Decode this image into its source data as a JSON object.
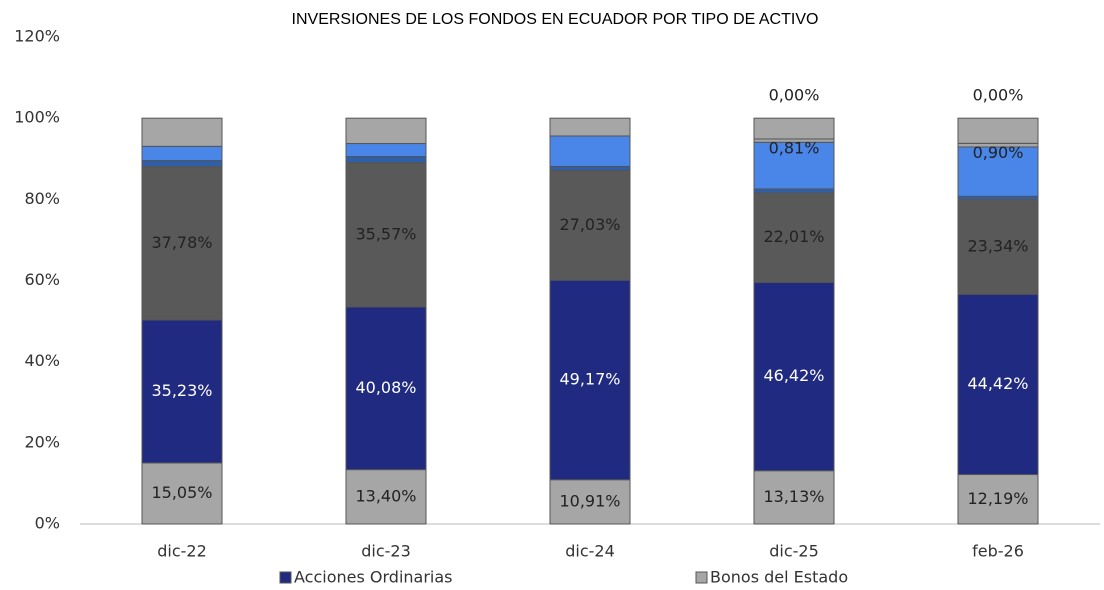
{
  "chart_data": {
    "type": "stacked_bar",
    "title": "INVERSIONES DE LOS FONDOS EN ECUADOR POR TIPO DE ACTIVO",
    "categories": [
      "dic-22",
      "dic-23",
      "dic-24",
      "dic-25",
      "feb-26"
    ],
    "ylim": [
      0,
      120
    ],
    "yticks": [
      {
        "value": 0,
        "label": "0%"
      },
      {
        "value": 20,
        "label": "20%"
      },
      {
        "value": 40,
        "label": "40%"
      },
      {
        "value": 60,
        "label": "60%"
      },
      {
        "value": 80,
        "label": "80%"
      },
      {
        "value": 100,
        "label": "100%"
      },
      {
        "value": 120,
        "label": "120%"
      }
    ],
    "grid": false,
    "series": [
      {
        "name": "Bonos del Estado",
        "color": "#a6a6a6",
        "values": [
          15.05,
          13.4,
          10.91,
          13.13,
          12.19
        ],
        "value_labels": [
          "15,05%",
          "13,40%",
          "10,91%",
          "13,13%",
          "12,19%"
        ]
      },
      {
        "name": "Acciones Ordinarias",
        "color": "#1f2a80",
        "values": [
          35.23,
          40.08,
          49.17,
          46.42,
          44.42
        ],
        "value_labels": [
          "35,23%",
          "40,08%",
          "49,17%",
          "46,42%",
          "44,42%"
        ]
      },
      {
        "color": "#595959",
        "values": [
          37.78,
          35.57,
          27.03,
          22.01,
          23.34
        ],
        "value_labels": [
          "37,78%",
          "35,57%",
          "27,03%",
          "22,01%",
          "23,34%"
        ]
      },
      {
        "color": "#2e5fa8",
        "values": [
          1.5,
          1.5,
          1.0,
          1.0,
          0.8
        ]
      },
      {
        "color": "#4a86e8",
        "values": [
          3.5,
          3.2,
          7.5,
          11.5,
          12.15
        ]
      },
      {
        "color": "#a6a6a6",
        "values": [
          null,
          null,
          null,
          0.81,
          0.9
        ],
        "value_labels": [
          null,
          null,
          null,
          "0,81%",
          "0,90%"
        ]
      },
      {
        "color": "#a6a6a6",
        "values": [
          6.94,
          6.25,
          4.39,
          5.13,
          6.2
        ]
      },
      {
        "color": "#1f2a80",
        "values": [
          null,
          null,
          null,
          0,
          0
        ],
        "value_labels": [
          null,
          null,
          null,
          "0,00%",
          "0,00%"
        ]
      }
    ]
  }
}
